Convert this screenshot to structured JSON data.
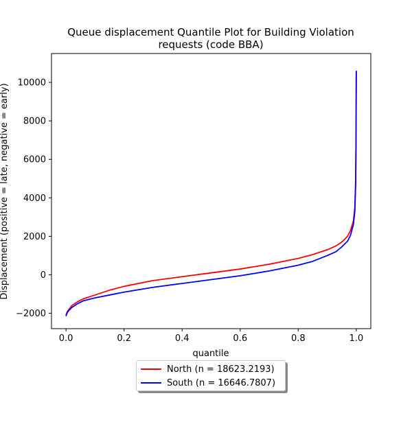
{
  "chart_data": {
    "type": "line",
    "title_line1": "Queue displacement Quantile Plot for Building Violation",
    "title_line2": "requests (code BBA)",
    "xlabel": "quantile",
    "ylabel": "Displacement (positive = late, negative = early)",
    "xlim": [
      -0.05,
      1.05
    ],
    "ylim": [
      -2800,
      11500
    ],
    "xticks": [
      0.0,
      0.2,
      0.4,
      0.6,
      0.8,
      1.0
    ],
    "xtick_labels": [
      "0.0",
      "0.2",
      "0.4",
      "0.6",
      "0.8",
      "1.0"
    ],
    "yticks": [
      -2000,
      0,
      2000,
      4000,
      6000,
      8000,
      10000
    ],
    "ytick_labels": [
      "−2000",
      "0",
      "2000",
      "4000",
      "6000",
      "8000",
      "10000"
    ],
    "grid": false,
    "legend_position": "below",
    "series": [
      {
        "name": "North (n = 18623.2193)",
        "color": "#ff0000",
        "x": [
          0.0,
          0.002,
          0.005,
          0.01,
          0.02,
          0.04,
          0.06,
          0.1,
          0.15,
          0.2,
          0.3,
          0.4,
          0.5,
          0.6,
          0.7,
          0.8,
          0.85,
          0.9,
          0.93,
          0.95,
          0.97,
          0.98,
          0.99,
          0.995,
          0.998,
          0.999,
          1.0
        ],
        "y": [
          -2100,
          -2000,
          -1900,
          -1800,
          -1600,
          -1400,
          -1250,
          -1050,
          -800,
          -600,
          -300,
          -100,
          100,
          300,
          550,
          850,
          1050,
          1300,
          1500,
          1700,
          2000,
          2300,
          2800,
          3500,
          5000,
          7000,
          10600
        ]
      },
      {
        "name": "South (n = 16646.7807)",
        "color": "#0000ff",
        "x": [
          0.0,
          0.002,
          0.005,
          0.01,
          0.02,
          0.04,
          0.06,
          0.1,
          0.15,
          0.2,
          0.3,
          0.4,
          0.5,
          0.6,
          0.7,
          0.8,
          0.85,
          0.9,
          0.93,
          0.95,
          0.97,
          0.98,
          0.99,
          0.995,
          0.998,
          0.999,
          1.0
        ],
        "y": [
          -2150,
          -2050,
          -1950,
          -1850,
          -1700,
          -1500,
          -1350,
          -1200,
          -1050,
          -900,
          -650,
          -450,
          -250,
          -50,
          200,
          500,
          700,
          1000,
          1200,
          1450,
          1750,
          2050,
          2600,
          3300,
          4800,
          6800,
          10600
        ]
      }
    ]
  }
}
